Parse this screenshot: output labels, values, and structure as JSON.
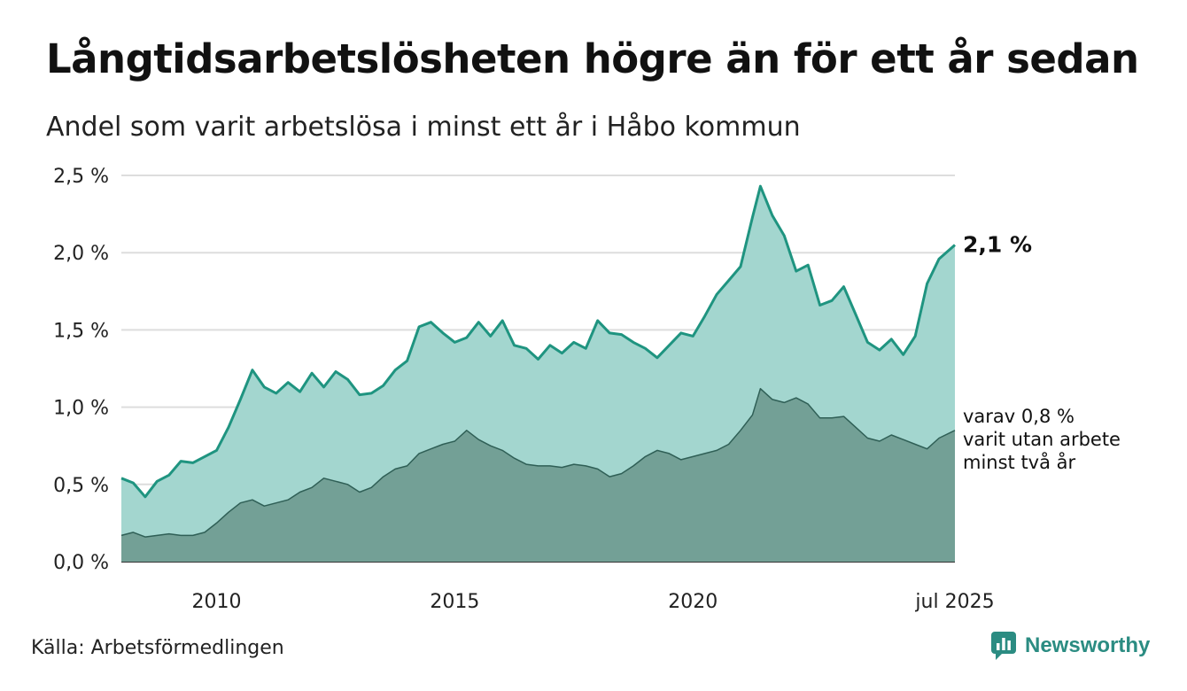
{
  "header": {
    "title": "Långtidsarbetslösheten högre än för ett år sedan",
    "subtitle": "Andel som varit arbetslösa i minst ett år i Håbo kommun"
  },
  "footer": {
    "source": "Källa: Arbetsförmedlingen",
    "brand": "Newsworthy"
  },
  "colors": {
    "brand": "#2b8c82",
    "series_main_fill": "#a3d6cf",
    "series_main_line": "#1f9480",
    "series_sub_fill": "#73a096",
    "series_sub_line": "#2f5f56",
    "grid": "#dddddd"
  },
  "chart_data": {
    "type": "area",
    "title": "Långtidsarbetslösheten högre än för ett år sedan",
    "subtitle": "Andel som varit arbetslösa i minst ett år i Håbo kommun",
    "xlabel": "",
    "ylabel": "",
    "ylim": [
      0,
      2.5
    ],
    "xlim": [
      "2008-01",
      "2025-07"
    ],
    "y_ticks": [
      "0,0 %",
      "0,5 %",
      "1,0 %",
      "1,5 %",
      "2,0 %",
      "2,5 %"
    ],
    "y_tick_values": [
      0,
      0.5,
      1.0,
      1.5,
      2.0,
      2.5
    ],
    "x_ticks": [
      "2010",
      "2015",
      "2020",
      "jul 2025"
    ],
    "x_tick_dates": [
      "2010-01",
      "2015-01",
      "2020-01",
      "2025-07"
    ],
    "grid": true,
    "series": [
      {
        "values": [
          [
            "2008-01",
            0.54
          ],
          [
            "2008-04",
            0.51
          ],
          [
            "2008-07",
            0.42
          ],
          [
            "2008-10",
            0.52
          ],
          [
            "2009-01",
            0.56
          ],
          [
            "2009-04",
            0.65
          ],
          [
            "2009-07",
            0.64
          ],
          [
            "2009-10",
            0.68
          ],
          [
            "2010-01",
            0.72
          ],
          [
            "2010-04",
            0.87
          ],
          [
            "2010-07",
            1.05
          ],
          [
            "2010-10",
            1.24
          ],
          [
            "2011-01",
            1.13
          ],
          [
            "2011-04",
            1.09
          ],
          [
            "2011-07",
            1.16
          ],
          [
            "2011-10",
            1.1
          ],
          [
            "2012-01",
            1.22
          ],
          [
            "2012-04",
            1.13
          ],
          [
            "2012-07",
            1.23
          ],
          [
            "2012-10",
            1.18
          ],
          [
            "2013-01",
            1.08
          ],
          [
            "2013-04",
            1.09
          ],
          [
            "2013-07",
            1.14
          ],
          [
            "2013-10",
            1.24
          ],
          [
            "2014-01",
            1.3
          ],
          [
            "2014-04",
            1.52
          ],
          [
            "2014-07",
            1.55
          ],
          [
            "2014-10",
            1.48
          ],
          [
            "2015-01",
            1.42
          ],
          [
            "2015-04",
            1.45
          ],
          [
            "2015-07",
            1.55
          ],
          [
            "2015-10",
            1.46
          ],
          [
            "2016-01",
            1.56
          ],
          [
            "2016-04",
            1.4
          ],
          [
            "2016-07",
            1.38
          ],
          [
            "2016-10",
            1.31
          ],
          [
            "2017-01",
            1.4
          ],
          [
            "2017-04",
            1.35
          ],
          [
            "2017-07",
            1.42
          ],
          [
            "2017-10",
            1.38
          ],
          [
            "2018-01",
            1.56
          ],
          [
            "2018-04",
            1.48
          ],
          [
            "2018-07",
            1.47
          ],
          [
            "2018-10",
            1.42
          ],
          [
            "2019-01",
            1.38
          ],
          [
            "2019-04",
            1.32
          ],
          [
            "2019-07",
            1.4
          ],
          [
            "2019-10",
            1.48
          ],
          [
            "2020-01",
            1.46
          ],
          [
            "2020-04",
            1.59
          ],
          [
            "2020-07",
            1.73
          ],
          [
            "2020-10",
            1.82
          ],
          [
            "2021-01",
            1.91
          ],
          [
            "2021-04",
            2.23
          ],
          [
            "2021-06",
            2.43
          ],
          [
            "2021-09",
            2.24
          ],
          [
            "2021-12",
            2.11
          ],
          [
            "2022-03",
            1.88
          ],
          [
            "2022-06",
            1.92
          ],
          [
            "2022-09",
            1.66
          ],
          [
            "2022-12",
            1.69
          ],
          [
            "2023-03",
            1.78
          ],
          [
            "2023-06",
            1.6
          ],
          [
            "2023-09",
            1.42
          ],
          [
            "2023-12",
            1.37
          ],
          [
            "2024-03",
            1.44
          ],
          [
            "2024-06",
            1.34
          ],
          [
            "2024-09",
            1.46
          ],
          [
            "2024-12",
            1.8
          ],
          [
            "2025-03",
            1.96
          ],
          [
            "2025-07",
            2.05
          ]
        ],
        "end_label": "2,1 %"
      },
      {
        "values": [
          [
            "2008-01",
            0.17
          ],
          [
            "2008-04",
            0.19
          ],
          [
            "2008-07",
            0.16
          ],
          [
            "2008-10",
            0.17
          ],
          [
            "2009-01",
            0.18
          ],
          [
            "2009-04",
            0.17
          ],
          [
            "2009-07",
            0.17
          ],
          [
            "2009-10",
            0.19
          ],
          [
            "2010-01",
            0.25
          ],
          [
            "2010-04",
            0.32
          ],
          [
            "2010-07",
            0.38
          ],
          [
            "2010-10",
            0.4
          ],
          [
            "2011-01",
            0.36
          ],
          [
            "2011-04",
            0.38
          ],
          [
            "2011-07",
            0.4
          ],
          [
            "2011-10",
            0.45
          ],
          [
            "2012-01",
            0.48
          ],
          [
            "2012-04",
            0.54
          ],
          [
            "2012-07",
            0.52
          ],
          [
            "2012-10",
            0.5
          ],
          [
            "2013-01",
            0.45
          ],
          [
            "2013-04",
            0.48
          ],
          [
            "2013-07",
            0.55
          ],
          [
            "2013-10",
            0.6
          ],
          [
            "2014-01",
            0.62
          ],
          [
            "2014-04",
            0.7
          ],
          [
            "2014-07",
            0.73
          ],
          [
            "2014-10",
            0.76
          ],
          [
            "2015-01",
            0.78
          ],
          [
            "2015-04",
            0.85
          ],
          [
            "2015-07",
            0.79
          ],
          [
            "2015-10",
            0.75
          ],
          [
            "2016-01",
            0.72
          ],
          [
            "2016-04",
            0.67
          ],
          [
            "2016-07",
            0.63
          ],
          [
            "2016-10",
            0.62
          ],
          [
            "2017-01",
            0.62
          ],
          [
            "2017-04",
            0.61
          ],
          [
            "2017-07",
            0.63
          ],
          [
            "2017-10",
            0.62
          ],
          [
            "2018-01",
            0.6
          ],
          [
            "2018-04",
            0.55
          ],
          [
            "2018-07",
            0.57
          ],
          [
            "2018-10",
            0.62
          ],
          [
            "2019-01",
            0.68
          ],
          [
            "2019-04",
            0.72
          ],
          [
            "2019-07",
            0.7
          ],
          [
            "2019-10",
            0.66
          ],
          [
            "2020-01",
            0.68
          ],
          [
            "2020-04",
            0.7
          ],
          [
            "2020-07",
            0.72
          ],
          [
            "2020-10",
            0.76
          ],
          [
            "2021-01",
            0.85
          ],
          [
            "2021-04",
            0.95
          ],
          [
            "2021-06",
            1.12
          ],
          [
            "2021-09",
            1.05
          ],
          [
            "2021-12",
            1.03
          ],
          [
            "2022-03",
            1.06
          ],
          [
            "2022-06",
            1.02
          ],
          [
            "2022-09",
            0.93
          ],
          [
            "2022-12",
            0.93
          ],
          [
            "2023-03",
            0.94
          ],
          [
            "2023-06",
            0.87
          ],
          [
            "2023-09",
            0.8
          ],
          [
            "2023-12",
            0.78
          ],
          [
            "2024-03",
            0.82
          ],
          [
            "2024-06",
            0.79
          ],
          [
            "2024-09",
            0.76
          ],
          [
            "2024-12",
            0.73
          ],
          [
            "2025-03",
            0.8
          ],
          [
            "2025-07",
            0.85
          ]
        ],
        "end_label_lines": [
          "varav 0,8 %",
          "varit utan arbete",
          "minst två år"
        ]
      }
    ]
  }
}
